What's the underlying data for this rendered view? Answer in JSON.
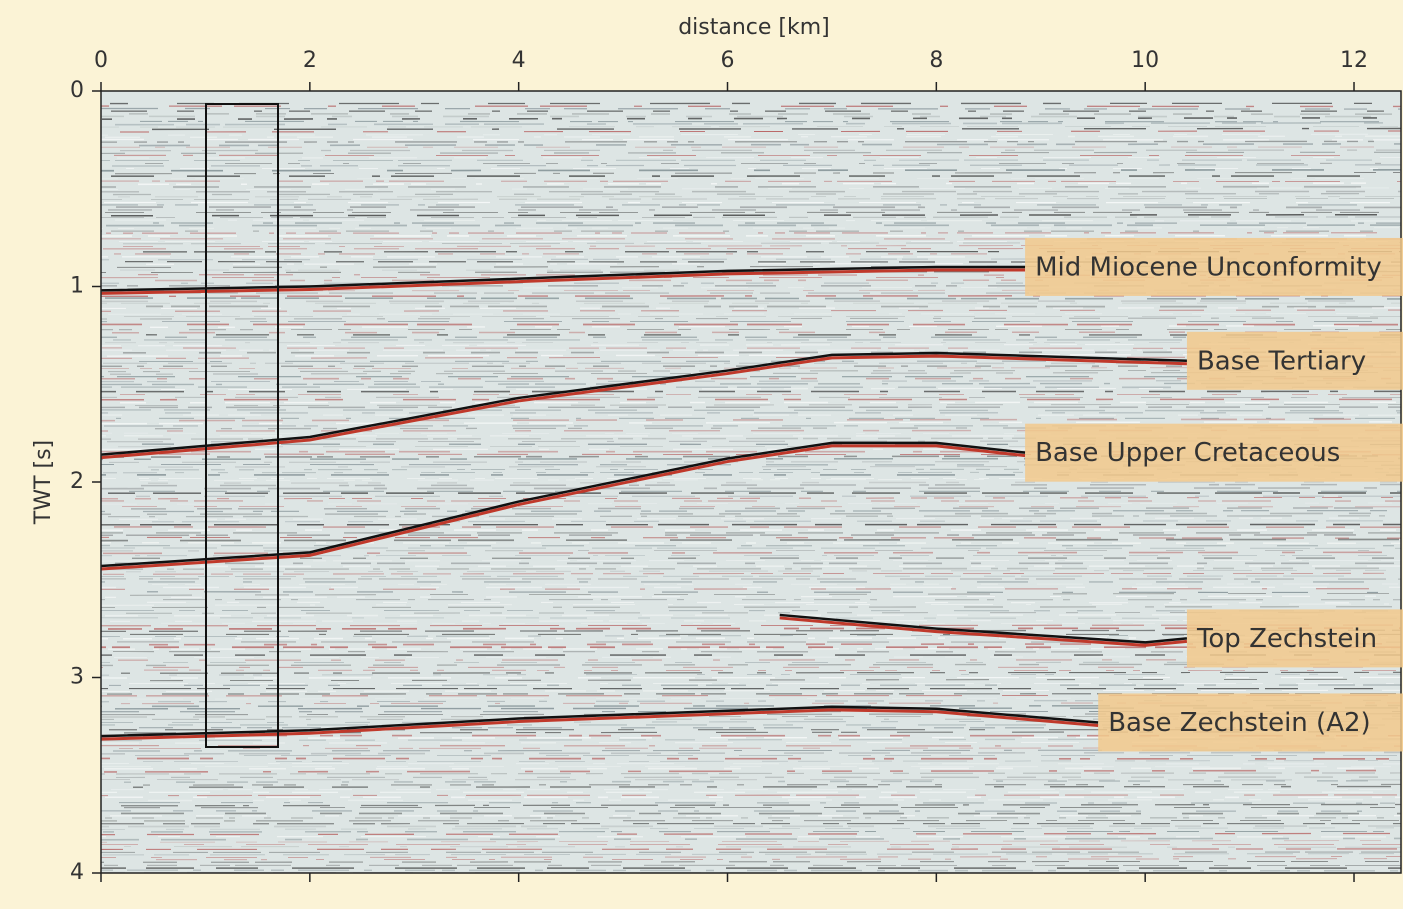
{
  "chart_data": {
    "type": "seismic",
    "xlabel": "distance [km]",
    "ylabel": "TWT [s]",
    "xlim": [
      0,
      12.45
    ],
    "ylim": [
      4,
      0
    ],
    "xticks": [
      0,
      2,
      4,
      6,
      8,
      10,
      12
    ],
    "yticks": [
      0,
      1,
      2,
      3,
      4
    ],
    "series": [
      {
        "name": "Mid Miocene Unconformity",
        "color": "#111111",
        "x": [
          0,
          2,
          4,
          6,
          8,
          8.85
        ],
        "values": [
          1.02,
          1.0,
          0.96,
          0.92,
          0.9,
          0.9
        ]
      },
      {
        "name": "Base Tertiary",
        "color": "#111111",
        "x": [
          0,
          2,
          4,
          6,
          7,
          8,
          10.4
        ],
        "values": [
          1.86,
          1.77,
          1.57,
          1.43,
          1.35,
          1.34,
          1.38
        ]
      },
      {
        "name": "Base Upper Cretaceous",
        "color": "#111111",
        "x": [
          0,
          2,
          4,
          6,
          7,
          8,
          8.85
        ],
        "values": [
          2.43,
          2.36,
          2.1,
          1.88,
          1.8,
          1.8,
          1.85
        ]
      },
      {
        "name": "Top Zechstein",
        "color": "#111111",
        "x": [
          6.5,
          8,
          10,
          10.4
        ],
        "values": [
          2.68,
          2.75,
          2.82,
          2.8
        ]
      },
      {
        "name": "Base Zechstein (A2)",
        "color": "#111111",
        "x": [
          0,
          2,
          4,
          6,
          7,
          8,
          9.55
        ],
        "values": [
          3.3,
          3.27,
          3.21,
          3.17,
          3.15,
          3.16,
          3.23
        ]
      }
    ]
  }
}
